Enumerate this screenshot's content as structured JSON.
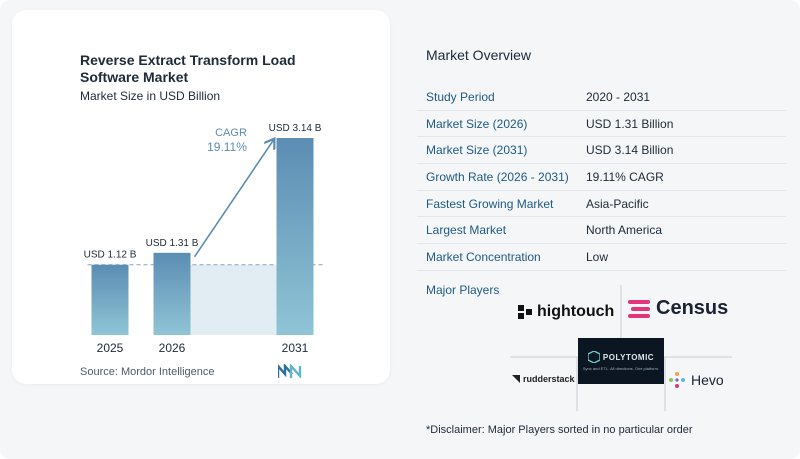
{
  "chart_data": {
    "type": "bar",
    "title": "Reverse Extract Transform Load Software Market",
    "subtitle": "Market Size in USD Billion",
    "categories": [
      "2025",
      "2026",
      "2031"
    ],
    "values": [
      1.12,
      1.31,
      3.14
    ],
    "value_labels": [
      "USD 1.12 B",
      "USD 1.31 B",
      "USD 3.14 B"
    ],
    "cagr_label": "CAGR",
    "cagr_value": "19.11%",
    "ylim": [
      0,
      3.3
    ],
    "grid": false,
    "bar_color_top": "#5b8db3",
    "bar_color_bottom": "#8fc5d6"
  },
  "source": "Source:  Mordor Intelligence",
  "overview": {
    "title": "Market Overview",
    "rows": [
      {
        "key": "Study Period",
        "value": "2020 - 2031"
      },
      {
        "key": "Market Size (2026)",
        "value": "USD 1.31 Billion"
      },
      {
        "key": "Market Size (2031)",
        "value": "USD 3.14 Billion"
      },
      {
        "key": "Growth Rate (2026 - 2031)",
        "value": "19.11% CAGR"
      },
      {
        "key": "Fastest Growing Market",
        "value": "Asia-Pacific"
      },
      {
        "key": "Largest Market",
        "value": "North America"
      },
      {
        "key": "Market Concentration",
        "value": "Low"
      }
    ]
  },
  "players": {
    "title": "Major Players",
    "logos": {
      "hightouch": "hightouch",
      "census": "Census",
      "rudderstack": "rudderstack",
      "polytomic": "POLYTOMIC",
      "polytomic_tagline": "Sync and ETL. All directions. One platform.",
      "hevo": "Hevo"
    }
  },
  "disclaimer": "*Disclaimer: Major Players sorted in no particular order"
}
